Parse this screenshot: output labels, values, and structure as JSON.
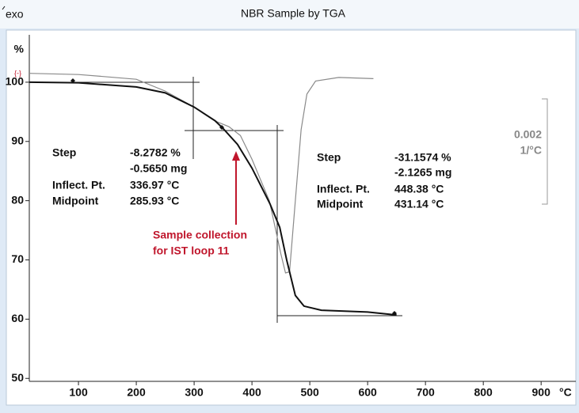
{
  "chart_data": {
    "type": "line",
    "title": "NBR Sample by TGA",
    "exo_label": "exo",
    "y_unit": "%",
    "x_unit": "°C",
    "xlim": [
      15,
      960
    ],
    "ylim": [
      49.5,
      108
    ],
    "xticks": [
      100,
      200,
      300,
      400,
      500,
      600,
      700,
      800,
      900
    ],
    "yticks": [
      50,
      60,
      70,
      80,
      90,
      100
    ],
    "series": [
      {
        "color": "#111111",
        "x": [
          15,
          100,
          200,
          250,
          300,
          336,
          350,
          375,
          400,
          431,
          448,
          460,
          475,
          490,
          520,
          600,
          650
        ],
        "values": [
          100,
          99.9,
          99.2,
          98.2,
          95.8,
          93.5,
          92.2,
          89.5,
          85.5,
          79.5,
          75.5,
          70,
          64,
          62.2,
          61.5,
          61.2,
          60.7
        ]
      },
      {
        "color": "#8a8a8a",
        "x": [
          15,
          100,
          200,
          250,
          300,
          340,
          360,
          380,
          400,
          430,
          450,
          458,
          465,
          475,
          485,
          495,
          510,
          550,
          610
        ],
        "values": [
          101.5,
          101.3,
          100.5,
          98.5,
          95.8,
          93.3,
          92.5,
          91,
          87,
          80,
          71,
          67.8,
          68,
          80,
          92,
          98,
          100.2,
          100.8,
          100.6
        ]
      }
    ],
    "result_labels": [
      "Step",
      "Inflect. Pt.",
      "Midpoint"
    ],
    "steps": [
      {
        "step": "-8.2782 %",
        "mass": "-0.5650 mg",
        "inflection": "336.97 °C",
        "midpoint": "285.93 °C"
      },
      {
        "step": "-31.1574 %",
        "mass": "-2.1265 mg",
        "inflection": "448.38 °C",
        "midpoint": "431.14 °C"
      }
    ],
    "annotation": [
      "Sample collection",
      "for IST loop 11"
    ],
    "scale_bar": [
      "0.002",
      "1/°C"
    ]
  }
}
